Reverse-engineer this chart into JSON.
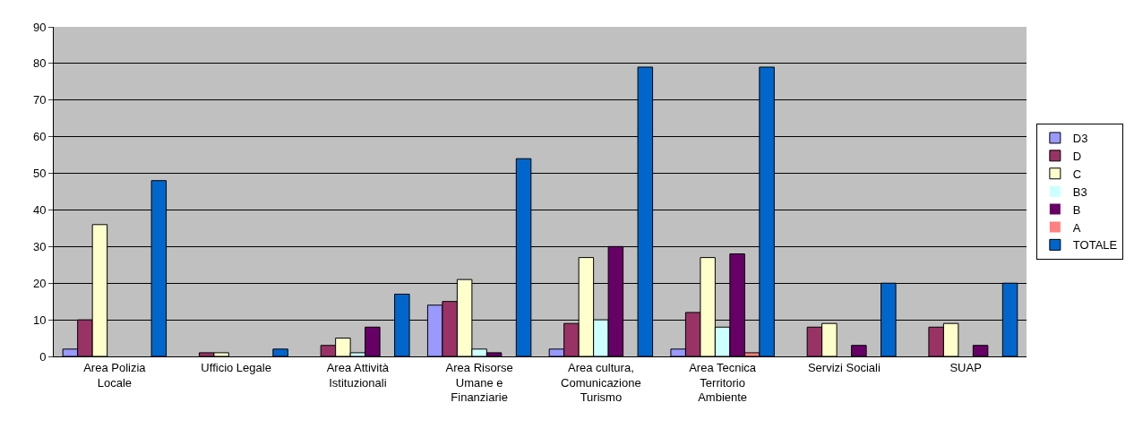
{
  "chart_data": {
    "type": "bar",
    "categories": [
      "Area Polizia Locale",
      "Ufficio Legale",
      "Area Attività Istituzionali",
      "Area Risorse Umane e Finanziarie",
      "Area cultura, Comunicazione Turismo",
      "Area Tecnica Territorio Ambiente",
      "Servizi Sociali",
      "SUAP"
    ],
    "series": [
      {
        "name": "D3",
        "color": "#9999ff",
        "values": [
          2,
          0,
          0,
          14,
          2,
          2,
          0,
          0
        ]
      },
      {
        "name": "D",
        "color": "#993366",
        "values": [
          10,
          1,
          3,
          15,
          9,
          12,
          8,
          8
        ]
      },
      {
        "name": "C",
        "color": "#ffffcc",
        "values": [
          36,
          1,
          5,
          21,
          27,
          27,
          9,
          9
        ]
      },
      {
        "name": "B3",
        "color": "#ccffff",
        "values": [
          0,
          0,
          1,
          2,
          10,
          8,
          0,
          0
        ]
      },
      {
        "name": "B",
        "color": "#660066",
        "values": [
          0,
          0,
          8,
          1,
          30,
          28,
          3,
          3
        ]
      },
      {
        "name": "A",
        "color": "#ff8080",
        "values": [
          0,
          0,
          0,
          0,
          0,
          1,
          0,
          0
        ]
      },
      {
        "name": "TOTALE",
        "color": "#0066cc",
        "values": [
          48,
          2,
          17,
          54,
          79,
          79,
          20,
          20
        ]
      }
    ],
    "ylim": [
      0,
      90
    ],
    "yticks": [
      0,
      10,
      20,
      30,
      40,
      50,
      60,
      70,
      80,
      90
    ],
    "grid": "y",
    "legend": "right"
  }
}
